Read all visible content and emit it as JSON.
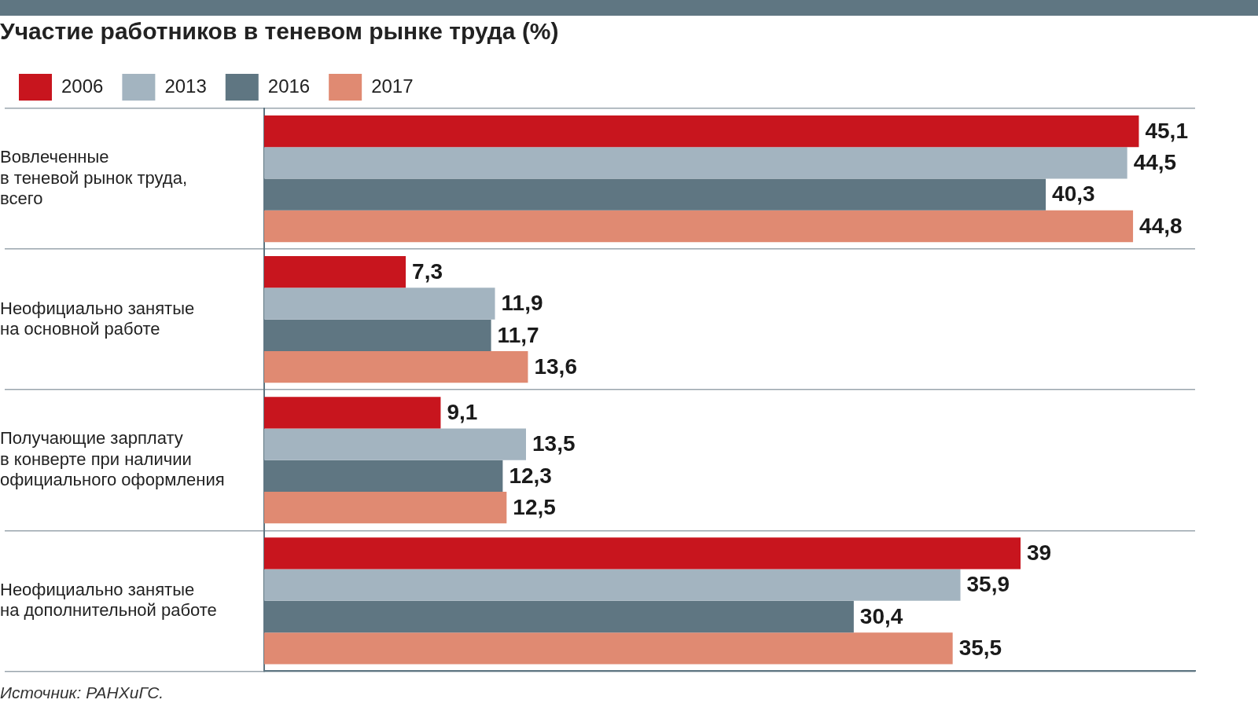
{
  "chart_data": {
    "type": "bar",
    "orientation": "horizontal",
    "title": "Участие работников в теневом рынке труда (%)",
    "source": "Источник: РАНХиГС.",
    "categories": [
      "Вовлеченные\nв теневой рынок труда,\nвсего",
      "Неофициально занятые\nна основной работе",
      "Получающие зарплату\nв конверте при наличии\nофициального оформления",
      "Неофициально занятые\nна дополнительной работе"
    ],
    "series": [
      {
        "name": "2006",
        "color": "#c8151e",
        "values": [
          45.1,
          7.3,
          9.1,
          39
        ],
        "value_labels": [
          "45,1",
          "7,3",
          "9,1",
          "39"
        ]
      },
      {
        "name": "2013",
        "color": "#a3b4c0",
        "values": [
          44.5,
          11.9,
          13.5,
          35.9
        ],
        "value_labels": [
          "44,5",
          "11,9",
          "13,5",
          "35,9"
        ]
      },
      {
        "name": "2016",
        "color": "#5f7682",
        "values": [
          40.3,
          11.7,
          12.3,
          30.4
        ],
        "value_labels": [
          "40,3",
          "11,7",
          "12,3",
          "30,4"
        ]
      },
      {
        "name": "2017",
        "color": "#e08a72",
        "values": [
          44.8,
          13.6,
          12.5,
          35.5
        ],
        "value_labels": [
          "44,8",
          "13,6",
          "12,5",
          "35,5"
        ]
      }
    ],
    "xlim": [
      0,
      48
    ],
    "grid": true,
    "legend": "top",
    "data_labels": true,
    "tick_labels": "y"
  }
}
